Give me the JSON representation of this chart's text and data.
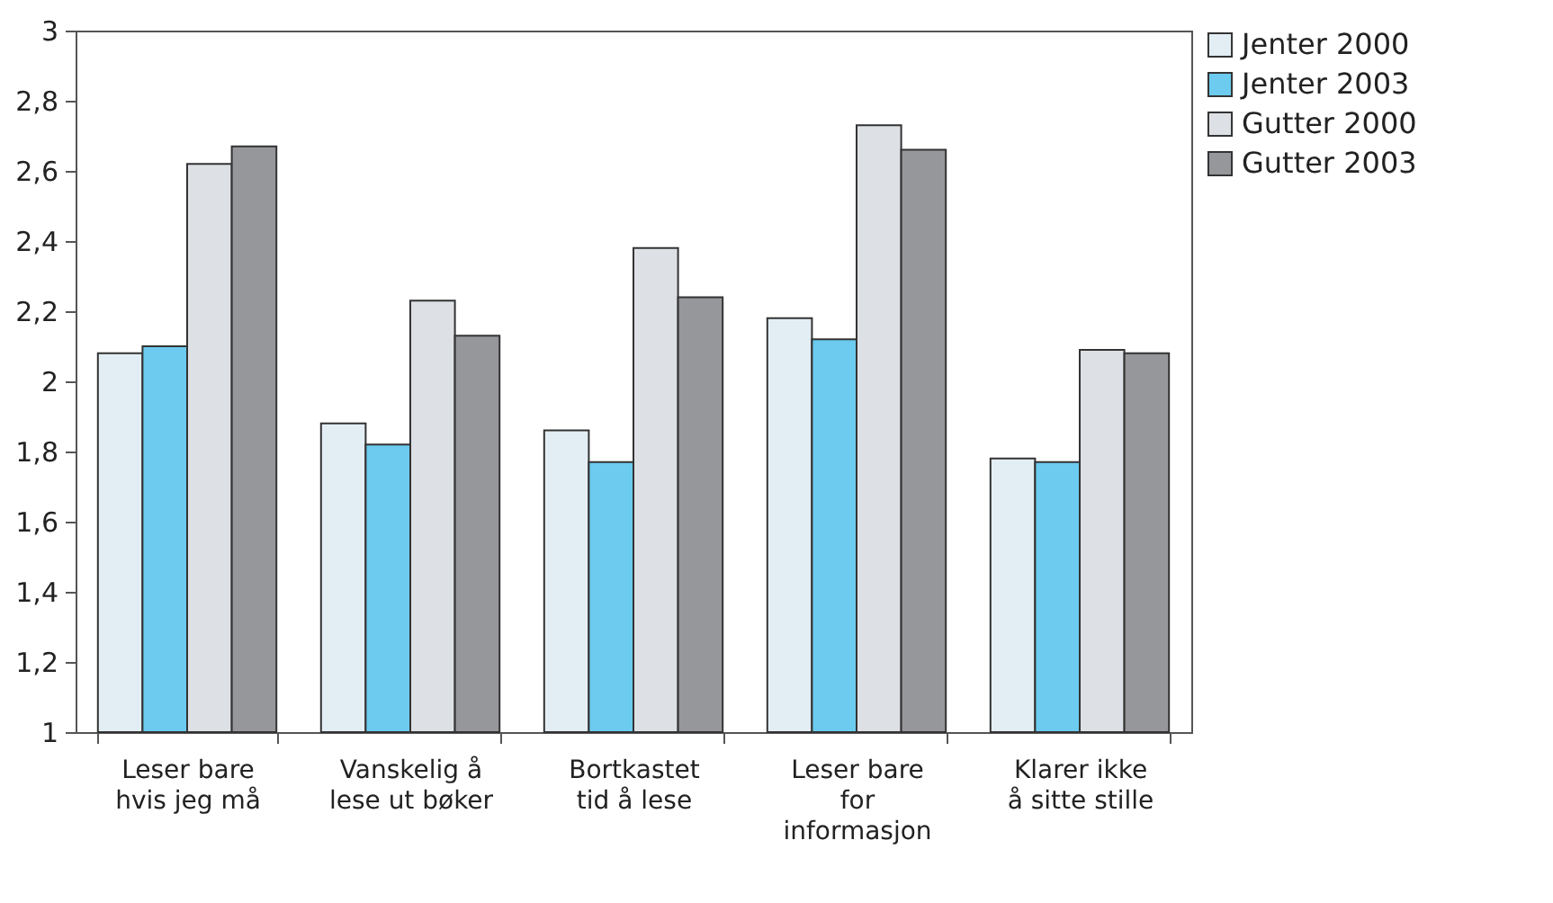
{
  "chart_data": {
    "type": "bar",
    "categories": [
      "Leser bare\nhvis jeg må",
      "Vanskelig å\nlese ut bøker",
      "Bortkastet\ntid å lese",
      "Leser bare\nfor\ninformasjon",
      "Klarer ikke\nå sitte stille"
    ],
    "series": [
      {
        "name": "Jenter 2000",
        "color": "#e3eef4",
        "values": [
          2.08,
          1.88,
          1.86,
          2.18,
          1.78
        ]
      },
      {
        "name": "Jenter 2003",
        "color": "#6ccbef",
        "values": [
          2.1,
          1.82,
          1.77,
          2.12,
          1.77
        ]
      },
      {
        "name": "Gutter 2000",
        "color": "#dde0e4",
        "values": [
          2.62,
          2.23,
          2.38,
          2.73,
          2.09
        ]
      },
      {
        "name": "Gutter 2003",
        "color": "#96979b",
        "values": [
          2.67,
          2.13,
          2.24,
          2.66,
          2.08
        ]
      }
    ],
    "ylim": [
      1,
      3
    ],
    "yticks": [
      1,
      {
        "value": 1.2,
        "label": "1,2"
      },
      {
        "value": 1.4,
        "label": "1,4"
      },
      {
        "value": 1.6,
        "label": "1,6"
      },
      {
        "value": 1.8,
        "label": "1,8"
      },
      2,
      {
        "value": 2.2,
        "label": "2,2"
      },
      {
        "value": 2.4,
        "label": "2,4"
      },
      {
        "value": 2.6,
        "label": "2,6"
      },
      {
        "value": 2.8,
        "label": "2,8"
      },
      3
    ],
    "grid": false,
    "legend": "right"
  }
}
